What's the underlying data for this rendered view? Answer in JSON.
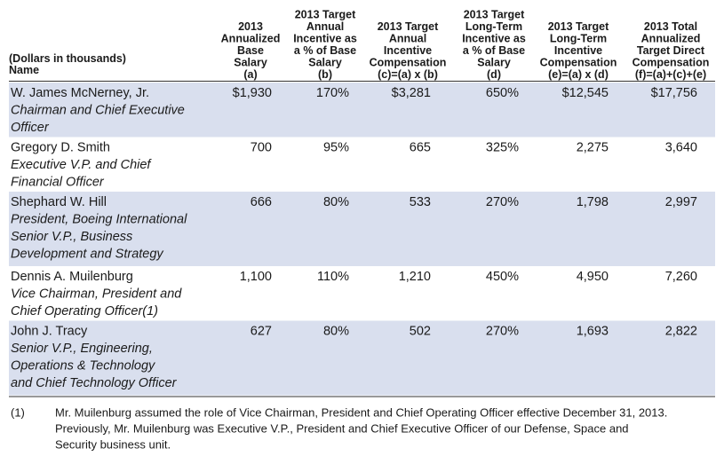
{
  "table": {
    "caption": "(Dollars in thousands)",
    "name_header": "Name",
    "columns": [
      [
        "2013",
        "Annualized",
        "Base",
        "Salary",
        "(a)"
      ],
      [
        "2013 Target",
        "Annual",
        "Incentive as",
        "a % of Base",
        "Salary",
        "(b)"
      ],
      [
        "2013 Target",
        "Annual",
        "Incentive",
        "Compensation",
        "(c)=(a) x (b)"
      ],
      [
        "2013 Target",
        "Long-Term",
        "Incentive as",
        "a % of Base",
        "Salary",
        "(d)"
      ],
      [
        "2013 Target",
        "Long-Term",
        "Incentive",
        "Compensation",
        "(e)=(a) x (d)"
      ],
      [
        "2013 Total",
        "Annualized",
        "Target Direct",
        "Compensation",
        "(f)=(a)+(c)+(e)"
      ]
    ],
    "rows": [
      {
        "name": "W. James McNerney, Jr.",
        "title": [
          "Chairman and Chief Executive",
          "Officer"
        ],
        "values": [
          "$1,930",
          "170%",
          "$3,281",
          "650%",
          "$12,545",
          "$17,756"
        ]
      },
      {
        "name": "Gregory D. Smith",
        "title": [
          "Executive V.P. and Chief",
          "Financial Officer"
        ],
        "values": [
          "700",
          "95%",
          "665",
          "325%",
          "2,275",
          "3,640"
        ]
      },
      {
        "name": "Shephard W. Hill",
        "title": [
          "President, Boeing International",
          "Senior V.P., Business",
          "Development and Strategy"
        ],
        "values": [
          "666",
          "80%",
          "533",
          "270%",
          "1,798",
          "2,997"
        ]
      },
      {
        "name": "Dennis A. Muilenburg",
        "title": [
          "Vice Chairman, President and",
          "Chief Operating Officer(1)"
        ],
        "values": [
          "1,100",
          "110%",
          "1,210",
          "450%",
          "4,950",
          "7,260"
        ]
      },
      {
        "name": "John J. Tracy",
        "title": [
          "Senior V.P., Engineering,",
          "Operations & Technology",
          "and Chief Technology Officer"
        ],
        "values": [
          "627",
          "80%",
          "502",
          "270%",
          "1,693",
          "2,822"
        ]
      }
    ]
  },
  "footnote": {
    "marker": "(1)",
    "lines": [
      "Mr. Muilenburg assumed the role of Vice Chairman, President and Chief Operating Officer effective December 31, 2013.",
      "Previously, Mr. Muilenburg was Executive V.P., President and Chief Executive Officer of our Defense, Space and",
      "Security business unit."
    ]
  }
}
